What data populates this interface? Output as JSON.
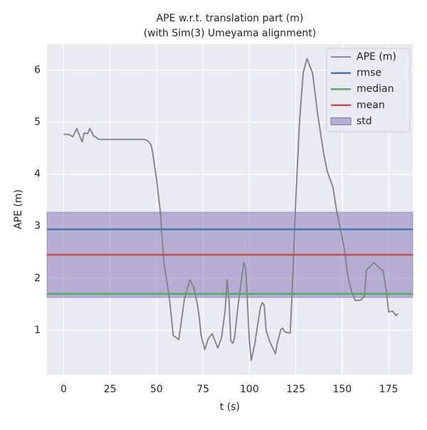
{
  "chart_data": {
    "type": "line",
    "title": "APE w.r.t. translation part (m)",
    "subtitle": "(with Sim(3) Umeyama alignment)",
    "x_label": "t (s)",
    "y_label": "APE (m)",
    "xlim": [
      -9,
      188
    ],
    "ylim": [
      0.15,
      6.5
    ],
    "xticks": [
      0,
      25,
      50,
      75,
      100,
      125,
      150,
      175
    ],
    "yticks": [
      1,
      2,
      3,
      4,
      5,
      6
    ],
    "grid": true,
    "legend": "upper right",
    "series": [
      {
        "name": "APE (m)",
        "color": "#808080",
        "x": [
          0,
          3,
          5,
          7,
          9,
          10,
          11,
          13,
          14,
          15,
          16,
          19,
          25,
          43,
          45,
          47,
          48,
          50,
          52,
          54,
          57,
          59,
          62,
          65,
          68,
          70,
          72,
          73,
          74,
          76,
          78,
          80,
          82,
          83,
          85,
          87,
          88,
          89,
          90,
          91,
          92,
          94,
          96,
          97,
          98,
          99,
          100,
          101,
          103,
          104,
          106,
          107,
          108,
          109,
          111,
          114,
          115,
          117,
          118,
          119,
          121,
          122,
          123,
          125,
          127,
          129,
          131,
          134,
          137,
          140,
          142,
          145,
          147,
          149,
          151,
          153,
          155,
          157,
          160,
          162,
          163,
          167,
          170,
          172,
          174,
          175,
          177,
          179,
          180
        ],
        "values": [
          4.77,
          4.76,
          4.72,
          4.88,
          4.7,
          4.62,
          4.79,
          4.78,
          4.88,
          4.82,
          4.74,
          4.67,
          4.67,
          4.67,
          4.65,
          4.57,
          4.4,
          3.9,
          3.3,
          2.3,
          1.6,
          0.9,
          0.82,
          1.6,
          1.97,
          1.83,
          1.5,
          1.25,
          0.9,
          0.63,
          0.85,
          0.93,
          0.75,
          0.66,
          0.85,
          1.4,
          1.97,
          1.6,
          0.8,
          0.75,
          0.85,
          1.5,
          2.05,
          2.3,
          2.2,
          1.5,
          0.8,
          0.42,
          0.75,
          1.0,
          1.45,
          1.53,
          1.48,
          1.0,
          0.78,
          0.55,
          0.75,
          1.02,
          1.04,
          0.97,
          0.95,
          0.95,
          1.7,
          3.5,
          5.0,
          5.95,
          6.22,
          5.95,
          5.1,
          4.4,
          4.05,
          3.75,
          3.3,
          2.95,
          2.6,
          2.05,
          1.75,
          1.57,
          1.58,
          1.65,
          2.15,
          2.3,
          2.2,
          2.15,
          1.7,
          1.35,
          1.37,
          1.28,
          1.32
        ]
      }
    ],
    "hlines": [
      {
        "name": "rmse",
        "color": "#4c72b0",
        "value": 2.94
      },
      {
        "name": "median",
        "color": "#55a868",
        "value": 1.7
      },
      {
        "name": "mean",
        "color": "#c44e52",
        "value": 2.45
      }
    ],
    "band": {
      "name": "std",
      "color": "#8172b2",
      "value": 0.82
    }
  }
}
